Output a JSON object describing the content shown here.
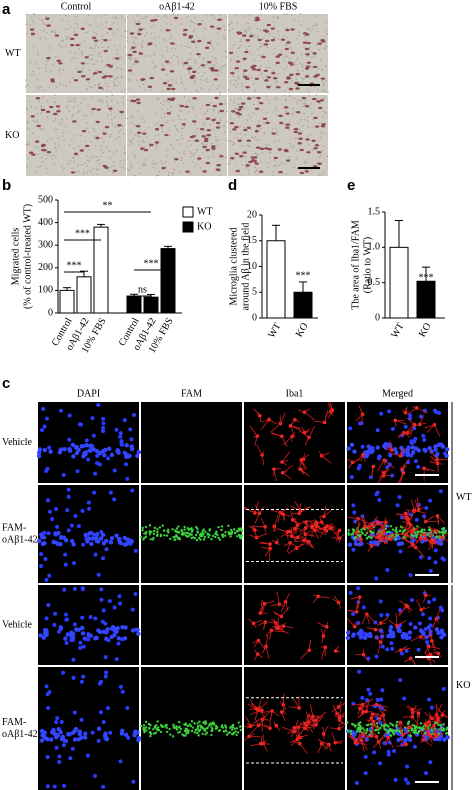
{
  "panel_labels": [
    "a",
    "b",
    "c",
    "d",
    "e"
  ],
  "figure_a": {
    "columns": [
      "Control",
      "oAβ1-42",
      "10% FBS"
    ],
    "rows": [
      "WT",
      "KO"
    ]
  },
  "figure_c": {
    "columns": [
      "DAPI",
      "FAM",
      "Iba1",
      "Merged"
    ],
    "rows": [
      [
        "Vehicle"
      ],
      [
        "FAM-",
        "oAβ1-42"
      ],
      [
        "Vehicle"
      ],
      [
        "FAM-",
        "oAβ1-42"
      ]
    ],
    "groups": [
      "WT",
      "KO"
    ]
  },
  "chart_data": [
    {
      "type": "bar",
      "ylabel": [
        "Migrated cells",
        "(% of control-treated WT)"
      ],
      "categories": [
        "Control",
        "oAβ1-42",
        "10% FBS",
        "Control",
        "oAβ1-42",
        "10% FBS"
      ],
      "series": [
        {
          "name": "WT",
          "color": "#ffffff",
          "values": [
            100,
            160,
            380,
            null,
            null,
            null
          ],
          "errors": [
            12,
            25,
            12,
            null,
            null,
            null
          ]
        },
        {
          "name": "KO",
          "color": "#000000",
          "values": [
            null,
            null,
            null,
            75,
            70,
            285
          ],
          "errors": [
            null,
            null,
            null,
            8,
            12,
            10
          ]
        }
      ],
      "ylim": [
        0,
        500
      ],
      "yticks": [
        0,
        100,
        200,
        300,
        400,
        500
      ],
      "annotations": [
        "***",
        "***",
        "**",
        "ns",
        "***"
      ],
      "legend": "upper right"
    },
    {
      "type": "bar",
      "ylabel": [
        "Microglia clustered",
        "around Aβ in the field"
      ],
      "categories": [
        "WT",
        "KO"
      ],
      "values": [
        15,
        5
      ],
      "errors": [
        3,
        2
      ],
      "colors": [
        "#ffffff",
        "#000000"
      ],
      "ylim": [
        0,
        20
      ],
      "yticks": [
        0,
        5,
        10,
        15,
        20
      ],
      "annotations": [
        "***"
      ]
    },
    {
      "type": "bar",
      "ylabel": [
        "The area of Iba1/FAM",
        "(Ratio to WT)"
      ],
      "categories": [
        "WT",
        "KO"
      ],
      "values": [
        1,
        0.52
      ],
      "errors": [
        0.38,
        0.2
      ],
      "colors": [
        "#ffffff",
        "#000000"
      ],
      "ylim": [
        0,
        1.5
      ],
      "yticks": [
        0,
        0.5,
        {
          "value": 1,
          "label": "1.0"
        },
        1.5
      ],
      "annotations": [
        "***"
      ]
    }
  ]
}
